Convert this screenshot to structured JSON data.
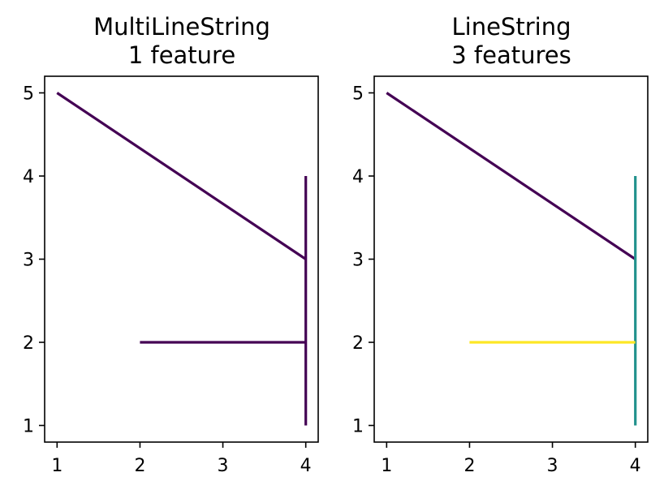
{
  "chart_data": [
    {
      "type": "line",
      "title": [
        "MultiLineString",
        "1 feature"
      ],
      "xlim": [
        0.85,
        4.15
      ],
      "ylim": [
        0.8,
        5.2
      ],
      "xticks": [
        1,
        2,
        3,
        4
      ],
      "yticks": [
        1,
        2,
        3,
        4,
        5
      ],
      "series": [
        {
          "color": "#440154",
          "points": [
            [
              1,
              5
            ],
            [
              4,
              3
            ]
          ]
        },
        {
          "color": "#440154",
          "points": [
            [
              4,
              1
            ],
            [
              4,
              4
            ]
          ]
        },
        {
          "color": "#440154",
          "points": [
            [
              2,
              2
            ],
            [
              4,
              2
            ]
          ]
        }
      ]
    },
    {
      "type": "line",
      "title": [
        "LineString",
        "3 features"
      ],
      "xlim": [
        0.85,
        4.15
      ],
      "ylim": [
        0.8,
        5.2
      ],
      "xticks": [
        1,
        2,
        3,
        4
      ],
      "yticks": [
        1,
        2,
        3,
        4,
        5
      ],
      "series": [
        {
          "color": "#440154",
          "points": [
            [
              1,
              5
            ],
            [
              4,
              3
            ]
          ]
        },
        {
          "color": "#21918c",
          "points": [
            [
              4,
              1
            ],
            [
              4,
              4
            ]
          ]
        },
        {
          "color": "#fde725",
          "points": [
            [
              2,
              2
            ],
            [
              4,
              2
            ]
          ]
        }
      ]
    }
  ]
}
